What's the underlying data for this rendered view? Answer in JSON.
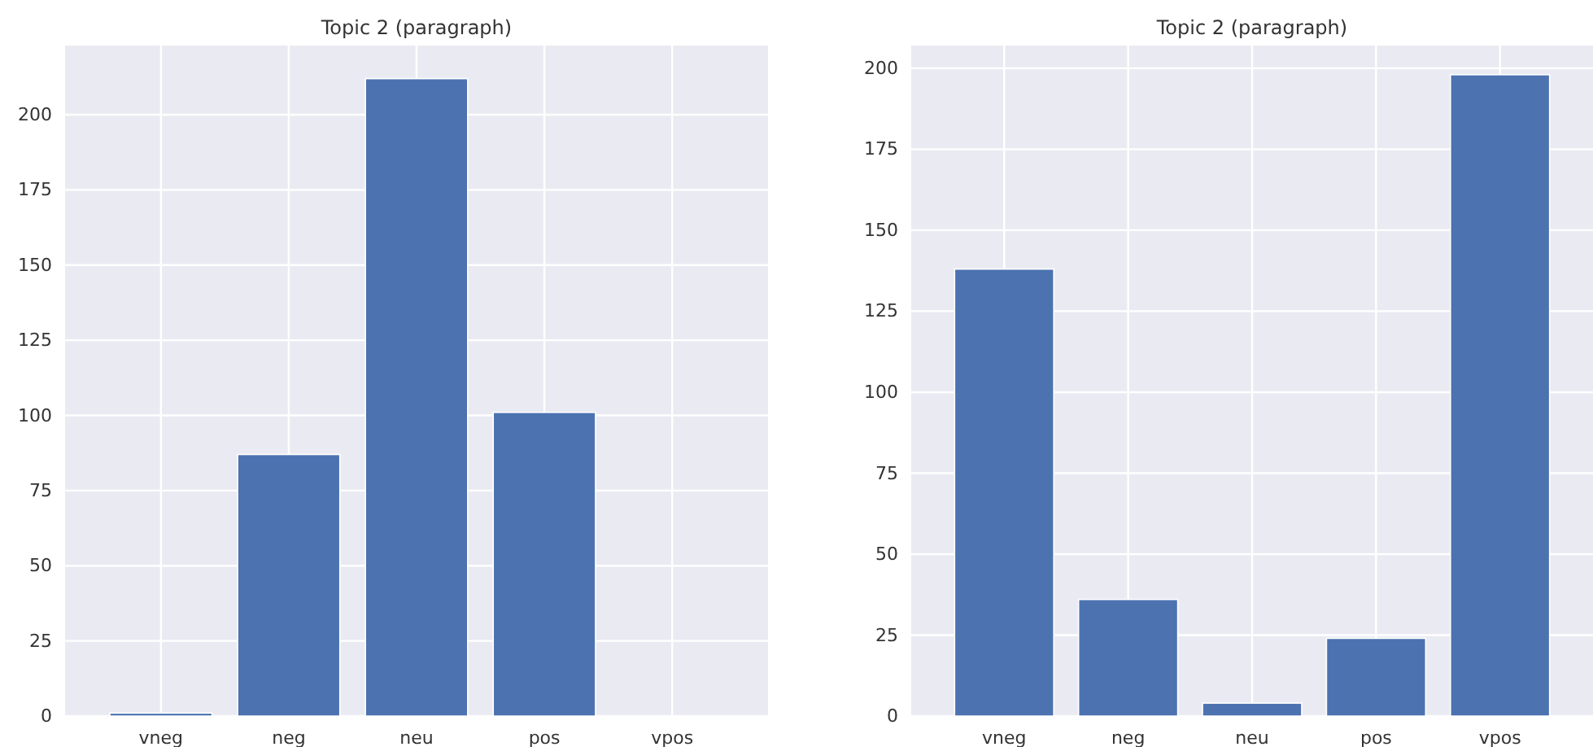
{
  "chart_data": [
    {
      "type": "bar",
      "title": "Topic 2 (paragraph)",
      "categories": [
        "vneg",
        "neg",
        "neu",
        "pos",
        "vpos"
      ],
      "values": [
        1,
        87,
        212,
        101,
        0
      ],
      "color": "#4c72b0",
      "ylim": [
        0,
        223
      ],
      "yticks": [
        0,
        25,
        50,
        75,
        100,
        125,
        150,
        175,
        200
      ],
      "grid": true
    },
    {
      "type": "bar",
      "title": "Topic 2 (paragraph)",
      "categories": [
        "vneg",
        "neg",
        "neu",
        "pos",
        "vpos"
      ],
      "values": [
        138,
        36,
        4,
        24,
        198
      ],
      "color": "#4c72b0",
      "ylim": [
        0,
        207
      ],
      "yticks": [
        0,
        25,
        50,
        75,
        100,
        125,
        150,
        175,
        200
      ],
      "grid": true
    }
  ]
}
